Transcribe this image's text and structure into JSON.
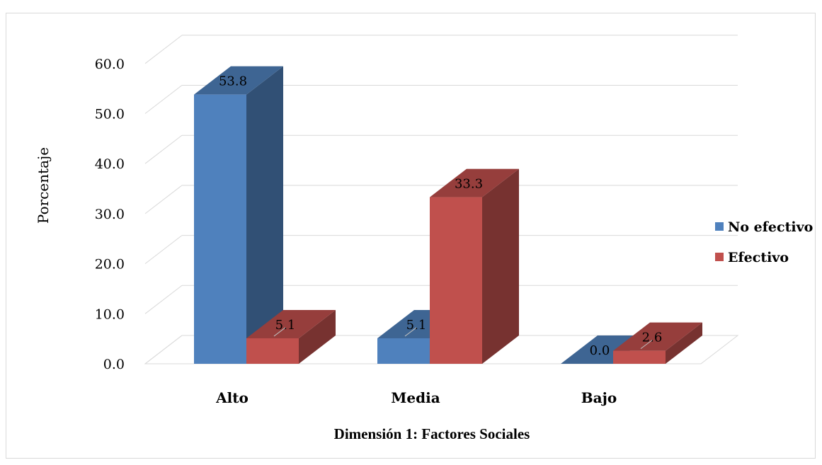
{
  "chart_data": {
    "type": "bar",
    "three_d": true,
    "categories": [
      "Alto",
      "Media",
      "Bajo"
    ],
    "series": [
      {
        "name": "No efectivo",
        "values": [
          53.8,
          5.1,
          0.0
        ],
        "labels": [
          "53.8",
          "5.1",
          "0.0"
        ],
        "color": "#4F81BD"
      },
      {
        "name": "Efectivo",
        "values": [
          5.1,
          33.3,
          2.6
        ],
        "labels": [
          "5.1",
          "33.3",
          "2.6"
        ],
        "color": "#C0504D"
      }
    ],
    "ylabel": "Porcentaje",
    "xlabel": "Dimensión 1: Factores Sociales",
    "yticks": [
      "0.0",
      "10.0",
      "20.0",
      "30.0",
      "40.0",
      "50.0",
      "60.0"
    ],
    "ylim": [
      0,
      60
    ],
    "grid": true,
    "legend_position": "right"
  }
}
